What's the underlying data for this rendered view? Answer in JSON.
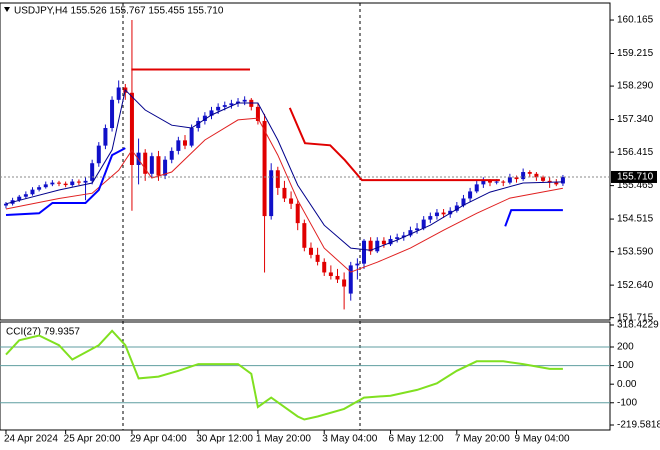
{
  "chart_data": [
    {
      "type": "candlestick",
      "title": "USDJPY,H4  155.526 155.767 155.455 155.710",
      "bull_color": "#1010c8",
      "bear_color": "#e00000",
      "xlim": [
        -0.9,
        91.1
      ],
      "xticks": [
        {
          "value": 0,
          "label": "24 Apr 2024"
        },
        {
          "value": 9,
          "label": "25 Apr 20:00"
        },
        {
          "value": 19,
          "label": "29 Apr 04:00"
        },
        {
          "value": 29,
          "label": "30 Apr 12:00"
        },
        {
          "value": 38,
          "label": "1 May 20:00"
        },
        {
          "value": 48,
          "label": "3 May 04:00"
        },
        {
          "value": 58,
          "label": "6 May 12:00"
        },
        {
          "value": 68,
          "label": "7 May 20:00"
        },
        {
          "value": 77,
          "label": "9 May 04:00"
        }
      ],
      "ylim": [
        151.65,
        160.45
      ],
      "yticks": [
        160.165,
        159.215,
        {
          "value": 158.29,
          "label": "158.290"
        },
        {
          "value": 157.34,
          "label": "157.340"
        },
        156.415,
        155.465,
        154.515,
        {
          "value": 153.59,
          "label": "153.590"
        },
        {
          "value": 152.64,
          "label": "152.640"
        },
        151.715
      ],
      "last_price": {
        "value": 155.71,
        "label": "155.710"
      },
      "ohlc": [
        [
          154.9,
          155.0,
          154.82,
          154.95
        ],
        [
          154.95,
          155.12,
          154.9,
          155.05
        ],
        [
          155.05,
          155.2,
          155.0,
          155.15
        ],
        [
          155.15,
          155.3,
          155.1,
          155.22
        ],
        [
          155.22,
          155.42,
          155.18,
          155.35
        ],
        [
          155.35,
          155.48,
          155.3,
          155.42
        ],
        [
          155.42,
          155.58,
          155.38,
          155.5
        ],
        [
          155.5,
          155.62,
          155.45,
          155.55
        ],
        [
          155.55,
          155.6,
          155.45,
          155.52
        ],
        [
          155.52,
          155.58,
          155.42,
          155.48
        ],
        [
          155.48,
          155.65,
          155.44,
          155.58
        ],
        [
          155.58,
          155.64,
          155.48,
          155.55
        ],
        [
          155.55,
          155.7,
          155.05,
          155.6
        ],
        [
          155.6,
          156.2,
          155.5,
          156.1
        ],
        [
          156.1,
          156.7,
          156.0,
          156.6
        ],
        [
          156.6,
          157.2,
          156.5,
          157.1
        ],
        [
          157.1,
          158.0,
          157.0,
          157.9
        ],
        [
          157.9,
          158.45,
          157.8,
          158.25
        ],
        [
          158.25,
          158.35,
          157.9,
          158.1
        ],
        [
          158.1,
          160.165,
          154.75,
          156.05
        ],
        [
          156.05,
          156.8,
          155.5,
          156.4
        ],
        [
          156.4,
          156.5,
          155.6,
          155.8
        ],
        [
          155.8,
          156.4,
          155.7,
          156.3
        ],
        [
          156.3,
          156.45,
          155.6,
          155.75
        ],
        [
          155.75,
          156.3,
          155.65,
          156.2
        ],
        [
          156.2,
          156.55,
          156.1,
          156.45
        ],
        [
          156.45,
          156.85,
          156.35,
          156.75
        ],
        [
          156.75,
          156.9,
          156.5,
          156.6
        ],
        [
          156.6,
          157.2,
          156.55,
          157.1
        ],
        [
          157.1,
          157.4,
          157.0,
          157.3
        ],
        [
          157.3,
          157.55,
          157.2,
          157.45
        ],
        [
          157.45,
          157.7,
          157.35,
          157.6
        ],
        [
          157.6,
          157.8,
          157.5,
          157.7
        ],
        [
          157.7,
          157.85,
          157.6,
          157.75
        ],
        [
          157.75,
          157.9,
          157.65,
          157.8
        ],
        [
          157.8,
          157.95,
          157.7,
          157.85
        ],
        [
          157.85,
          158.0,
          157.75,
          157.9
        ],
        [
          157.9,
          157.95,
          157.6,
          157.7
        ],
        [
          157.7,
          157.8,
          157.2,
          157.3
        ],
        [
          157.3,
          157.5,
          153.0,
          154.6
        ],
        [
          154.6,
          156.1,
          154.5,
          155.9
        ],
        [
          155.9,
          156.0,
          155.2,
          155.4
        ],
        [
          155.4,
          155.6,
          155.0,
          155.1
        ],
        [
          155.1,
          155.3,
          154.8,
          154.95
        ],
        [
          154.95,
          155.05,
          154.2,
          154.4
        ],
        [
          154.4,
          154.5,
          153.6,
          153.7
        ],
        [
          153.7,
          153.85,
          153.4,
          153.5
        ],
        [
          153.5,
          153.7,
          153.2,
          153.3
        ],
        [
          153.3,
          153.4,
          152.9,
          153.0
        ],
        [
          153.0,
          153.2,
          152.8,
          152.9
        ],
        [
          152.9,
          153.1,
          152.7,
          152.8
        ],
        [
          152.8,
          153.0,
          151.95,
          152.6
        ],
        [
          152.4,
          153.3,
          152.2,
          153.2
        ],
        [
          153.2,
          153.4,
          152.8,
          153.25
        ],
        [
          153.25,
          153.95,
          153.1,
          153.9
        ],
        [
          153.9,
          154.0,
          153.5,
          153.6
        ],
        [
          153.6,
          154.0,
          153.55,
          153.9
        ],
        [
          153.9,
          154.0,
          153.7,
          153.8
        ],
        [
          153.8,
          154.05,
          153.75,
          153.95
        ],
        [
          153.95,
          154.1,
          153.85,
          154.0
        ],
        [
          154.0,
          154.15,
          153.9,
          154.05
        ],
        [
          154.05,
          154.3,
          154.0,
          154.2
        ],
        [
          154.2,
          154.4,
          154.1,
          154.25
        ],
        [
          154.25,
          154.6,
          154.2,
          154.5
        ],
        [
          154.5,
          154.7,
          154.4,
          154.6
        ],
        [
          154.6,
          154.8,
          154.5,
          154.7
        ],
        [
          154.7,
          154.8,
          154.55,
          154.65
        ],
        [
          154.65,
          154.85,
          154.55,
          154.75
        ],
        [
          154.75,
          155.0,
          154.7,
          154.9
        ],
        [
          154.9,
          155.2,
          154.85,
          155.1
        ],
        [
          155.1,
          155.4,
          155.0,
          155.3
        ],
        [
          155.3,
          155.6,
          155.25,
          155.5
        ],
        [
          155.5,
          155.7,
          155.4,
          155.6
        ],
        [
          155.6,
          155.65,
          155.45,
          155.55
        ],
        [
          155.55,
          155.65,
          155.5,
          155.58
        ],
        [
          155.58,
          155.62,
          155.45,
          155.55
        ],
        [
          155.55,
          155.8,
          155.5,
          155.7
        ],
        [
          155.7,
          155.75,
          155.55,
          155.65
        ],
        [
          155.65,
          155.95,
          155.6,
          155.85
        ],
        [
          155.85,
          155.9,
          155.7,
          155.8
        ],
        [
          155.8,
          155.85,
          155.6,
          155.7
        ],
        [
          155.7,
          155.75,
          155.55,
          155.6
        ],
        [
          155.6,
          155.7,
          155.4,
          155.55
        ],
        [
          155.55,
          155.65,
          155.45,
          155.5
        ],
        [
          155.526,
          155.767,
          155.455,
          155.71
        ]
      ],
      "lines": [
        {
          "color": "#00008b",
          "width": 1,
          "x": [
            0,
            8,
            13,
            16,
            18,
            21,
            25,
            28,
            31,
            35,
            38,
            41,
            44,
            48,
            52,
            55,
            59,
            64,
            69,
            73,
            78,
            84
          ],
          "values": [
            154.95,
            155.34,
            155.54,
            156.48,
            158.18,
            157.61,
            157.18,
            157.1,
            157.47,
            157.81,
            157.81,
            156.76,
            155.48,
            154.34,
            153.69,
            153.63,
            153.92,
            154.34,
            154.91,
            155.28,
            155.54,
            155.57
          ]
        },
        {
          "color": "#e02020",
          "width": 1,
          "x": [
            0,
            8,
            13,
            17,
            19,
            22,
            25,
            30,
            35,
            38,
            41,
            44,
            48,
            52,
            56,
            61,
            66,
            71,
            76,
            84
          ],
          "values": [
            154.8,
            155.1,
            155.25,
            155.9,
            156.47,
            155.68,
            155.85,
            156.76,
            157.33,
            157.38,
            156.33,
            155.05,
            153.69,
            153.01,
            153.29,
            153.69,
            154.2,
            154.68,
            155.11,
            155.39
          ]
        },
        {
          "color": "#e00000",
          "width": 2,
          "x": [
            18.9,
            36.8,
            40,
            42.8,
            45.1,
            48.9,
            51.1,
            53.7,
            74.5
          ],
          "values": [
            158.76,
            158.76,
            null,
            157.67,
            156.67,
            156.61,
            156.19,
            155.62,
            155.62
          ]
        },
        {
          "color": "#0000ff",
          "width": 2,
          "x": [
            0,
            5,
            7,
            12,
            14,
            16,
            18,
            40,
            75.3,
            76.2,
            84
          ],
          "values": [
            154.63,
            154.68,
            154.97,
            154.97,
            155.34,
            156.33,
            156.53,
            null,
            154.31,
            154.77,
            154.77
          ]
        }
      ]
    },
    {
      "type": "line",
      "title": "CCI(27) 79.9357",
      "ylim": [
        -219.5818,
        318.4229
      ],
      "yticks": [
        318.4229,
        200,
        100,
        {
          "value": 0,
          "label": "0.00"
        },
        -100,
        -219.5818
      ],
      "levels": [
        200,
        100,
        -100
      ],
      "level_color": "#5f9ea0",
      "series": [
        {
          "color": "#80e020",
          "x": [
            0,
            2,
            5,
            8,
            10,
            14,
            16,
            18,
            20,
            23,
            26,
            29,
            35,
            37,
            38,
            40,
            44,
            45,
            47,
            51,
            54,
            58,
            62,
            65,
            68,
            71,
            75,
            78,
            82,
            84
          ],
          "values": [
            159,
            236,
            262,
            210,
            133,
            210,
            287,
            210,
            31,
            41,
            72,
            108,
            108,
            56,
            -123,
            -72,
            -174,
            -190,
            -174,
            -133,
            -72,
            -62,
            -31,
            5,
            72,
            123,
            123,
            108,
            82,
            82
          ]
        }
      ]
    }
  ]
}
